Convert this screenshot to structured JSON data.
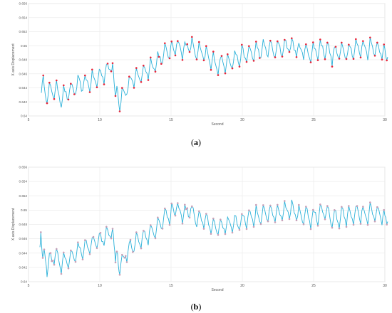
{
  "chart_data": [
    {
      "type": "line",
      "panel_label": "(a)",
      "title": "",
      "xlabel": "Second",
      "ylabel": "X axis Displacement",
      "xlim": [
        5,
        30
      ],
      "ylim": [
        0.64,
        0.656
      ],
      "x_ticks": [
        5,
        10,
        15,
        20,
        25,
        30
      ],
      "x_tick_labels": [
        "5",
        "10",
        "15",
        "20",
        "25",
        "30"
      ],
      "y_ticks": [
        0.64,
        0.642,
        0.644,
        0.646,
        0.648,
        0.65,
        0.652,
        0.654,
        0.656
      ],
      "y_tick_labels": [
        "0.64",
        "0.642",
        "0.644",
        "0.646",
        "0.648",
        "0.65",
        "0.652",
        "0.654",
        "0.656"
      ],
      "grid": true,
      "line_color": "#2ab0d8",
      "marker_color": "#e8253a",
      "keypoints": [
        [
          5.9,
          0.6448
        ],
        [
          6.3,
          0.6428
        ],
        [
          6.8,
          0.6438
        ],
        [
          7.3,
          0.6426
        ],
        [
          7.8,
          0.6432
        ],
        [
          8.3,
          0.644
        ],
        [
          8.8,
          0.6445
        ],
        [
          9.3,
          0.6448
        ],
        [
          9.8,
          0.6452
        ],
        [
          10.3,
          0.646
        ],
        [
          10.8,
          0.6472
        ],
        [
          11.1,
          0.644
        ],
        [
          11.4,
          0.6418
        ],
        [
          11.9,
          0.644
        ],
        [
          12.4,
          0.6452
        ],
        [
          12.9,
          0.6458
        ],
        [
          13.4,
          0.6466
        ],
        [
          13.9,
          0.6474
        ],
        [
          14.4,
          0.6485
        ],
        [
          14.9,
          0.6492
        ],
        [
          15.3,
          0.65
        ],
        [
          15.8,
          0.6493
        ],
        [
          16.3,
          0.65
        ],
        [
          16.8,
          0.649
        ],
        [
          17.3,
          0.6488
        ],
        [
          17.8,
          0.6478
        ],
        [
          18.3,
          0.6472
        ],
        [
          18.8,
          0.6476
        ],
        [
          19.3,
          0.6478
        ],
        [
          19.8,
          0.6484
        ],
        [
          20.3,
          0.6486
        ],
        [
          20.8,
          0.649
        ],
        [
          21.3,
          0.6492
        ],
        [
          21.8,
          0.6496
        ],
        [
          22.3,
          0.6492
        ],
        [
          22.8,
          0.6496
        ],
        [
          23.3,
          0.65
        ],
        [
          23.8,
          0.6494
        ],
        [
          24.3,
          0.6492
        ],
        [
          24.8,
          0.6488
        ],
        [
          25.3,
          0.6494
        ],
        [
          25.8,
          0.6496
        ],
        [
          26.3,
          0.6486
        ],
        [
          26.8,
          0.649
        ],
        [
          27.3,
          0.6492
        ],
        [
          27.8,
          0.6494
        ],
        [
          28.3,
          0.6496
        ],
        [
          28.8,
          0.6495
        ],
        [
          29.3,
          0.6498
        ],
        [
          29.8,
          0.649
        ],
        [
          30.2,
          0.6484
        ]
      ]
    },
    {
      "type": "line",
      "panel_label": "(b)",
      "title": "",
      "xlabel": "Second",
      "ylabel": "X axis Displacement",
      "xlim": [
        5,
        30
      ],
      "ylim": [
        0.64,
        0.656
      ],
      "x_ticks": [
        5,
        10,
        15,
        20,
        25,
        30
      ],
      "x_tick_labels": [
        "5",
        "10",
        "15",
        "20",
        "25",
        "30"
      ],
      "y_ticks": [
        0.64,
        0.642,
        0.644,
        0.646,
        0.648,
        0.65,
        0.652,
        0.654,
        0.656
      ],
      "y_tick_labels": [
        "0.64",
        "0.642",
        "0.644",
        "0.646",
        "0.648",
        "0.65",
        "0.652",
        "0.654",
        "0.656"
      ],
      "grid": true,
      "line_color": "#2ab0d8",
      "marker_color": "#c8a0b8",
      "keypoints": [
        [
          5.8,
          0.646
        ],
        [
          6.0,
          0.6442
        ],
        [
          6.3,
          0.6422
        ],
        [
          6.8,
          0.6436
        ],
        [
          7.3,
          0.6426
        ],
        [
          7.8,
          0.643
        ],
        [
          8.3,
          0.644
        ],
        [
          8.8,
          0.6446
        ],
        [
          9.3,
          0.645
        ],
        [
          9.8,
          0.6456
        ],
        [
          10.3,
          0.646
        ],
        [
          10.8,
          0.647
        ],
        [
          11.1,
          0.644
        ],
        [
          11.4,
          0.6418
        ],
        [
          11.9,
          0.6442
        ],
        [
          12.4,
          0.6452
        ],
        [
          12.9,
          0.6458
        ],
        [
          13.4,
          0.6466
        ],
        [
          13.9,
          0.6474
        ],
        [
          14.4,
          0.6485
        ],
        [
          14.9,
          0.6492
        ],
        [
          15.3,
          0.6502
        ],
        [
          15.8,
          0.6494
        ],
        [
          16.3,
          0.65
        ],
        [
          16.8,
          0.6488
        ],
        [
          17.3,
          0.6486
        ],
        [
          17.8,
          0.6478
        ],
        [
          18.3,
          0.6474
        ],
        [
          18.8,
          0.6476
        ],
        [
          19.3,
          0.648
        ],
        [
          19.8,
          0.6484
        ],
        [
          20.3,
          0.6488
        ],
        [
          20.8,
          0.649
        ],
        [
          21.3,
          0.6492
        ],
        [
          21.8,
          0.6496
        ],
        [
          22.3,
          0.6492
        ],
        [
          22.8,
          0.6496
        ],
        [
          23.3,
          0.65
        ],
        [
          23.8,
          0.6494
        ],
        [
          24.3,
          0.6492
        ],
        [
          24.8,
          0.6488
        ],
        [
          25.3,
          0.6494
        ],
        [
          25.8,
          0.6498
        ],
        [
          26.3,
          0.6488
        ],
        [
          26.8,
          0.649
        ],
        [
          27.3,
          0.6492
        ],
        [
          27.8,
          0.6494
        ],
        [
          28.3,
          0.6496
        ],
        [
          28.8,
          0.6494
        ],
        [
          29.3,
          0.6498
        ],
        [
          29.8,
          0.649
        ],
        [
          30.2,
          0.6484
        ]
      ]
    }
  ]
}
